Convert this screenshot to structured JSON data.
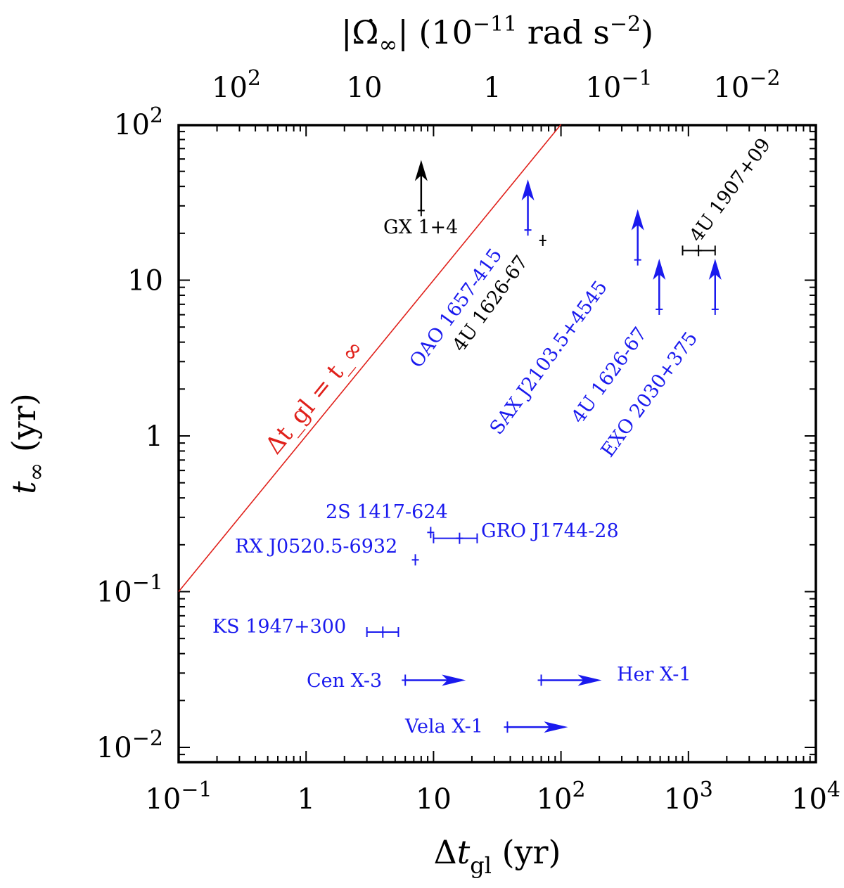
{
  "chart_data": {
    "type": "scatter",
    "xscale": "log",
    "yscale": "log",
    "xlim": [
      0.1,
      10000
    ],
    "ylim": [
      0.008,
      100
    ],
    "xlabel": "Δt_gl (yr)",
    "ylabel": "t_∞ (yr)",
    "top_axis_label": "|Ω̇_∞| (10^−11 rad s^−2)",
    "x_ticks": [
      {
        "base": "10",
        "exp": "−1"
      },
      {
        "base": "1",
        "exp": ""
      },
      {
        "base": "10",
        "exp": ""
      },
      {
        "base": "10",
        "exp": "2"
      },
      {
        "base": "10",
        "exp": "3"
      },
      {
        "base": "10",
        "exp": "4"
      }
    ],
    "y_ticks": [
      {
        "base": "10",
        "exp": "−2"
      },
      {
        "base": "10",
        "exp": "−1"
      },
      {
        "base": "1",
        "exp": ""
      },
      {
        "base": "10",
        "exp": ""
      },
      {
        "base": "10",
        "exp": "2"
      }
    ],
    "top_ticks": [
      {
        "base": "10",
        "exp": "2"
      },
      {
        "base": "10",
        "exp": ""
      },
      {
        "base": "1",
        "exp": ""
      },
      {
        "base": "10",
        "exp": "−1"
      },
      {
        "base": "10",
        "exp": "−2"
      }
    ],
    "reference_line": {
      "label": "Δt_gl = t_∞",
      "color": "#e0201a"
    },
    "colors": {
      "black": "#000000",
      "blue": "#1a1aee",
      "red": "#e0201a"
    },
    "sources": [
      {
        "label": "GX 1+4",
        "color": "black",
        "x": 8,
        "y": 28,
        "arrow": "up"
      },
      {
        "label": "OAO 1657-415",
        "color": "blue",
        "x": 55,
        "y": 21,
        "arrow": "up"
      },
      {
        "label": "4U 1626-67",
        "color": "black",
        "x": 72,
        "y": 18,
        "arrow": "none"
      },
      {
        "label": "SAX J2103.5+4545",
        "color": "blue",
        "x": 400,
        "y": 13.5,
        "arrow": "up"
      },
      {
        "label": "4U 1626-67",
        "color": "blue",
        "x": 590,
        "y": 6.5,
        "arrow": "up"
      },
      {
        "label": "EXO 2030+375",
        "color": "blue",
        "x": 1620,
        "y": 6.5,
        "arrow": "up"
      },
      {
        "label": "4U 1907+09",
        "color": "black",
        "x": 1200,
        "y": 15.5,
        "xerr": [
          900,
          1620
        ],
        "arrow": "none"
      },
      {
        "label": "2S 1417-624",
        "color": "blue",
        "x": 9.5,
        "y": 0.24,
        "arrow": "none"
      },
      {
        "label": "GRO J1744-28",
        "color": "blue",
        "x": 16,
        "y": 0.22,
        "xerr": [
          10,
          22
        ],
        "arrow": "none"
      },
      {
        "label": "RX J0520.5-6932",
        "color": "blue",
        "x": 7.2,
        "y": 0.16,
        "arrow": "none"
      },
      {
        "label": "KS 1947+300",
        "color": "blue",
        "x": 4,
        "y": 0.055,
        "xerr": [
          3,
          5.3
        ],
        "arrow": "none"
      },
      {
        "label": "Cen X-3",
        "color": "blue",
        "x": 6,
        "y": 0.027,
        "arrow": "right"
      },
      {
        "label": "Her X-1",
        "color": "blue",
        "x": 70,
        "y": 0.027,
        "arrow": "right"
      },
      {
        "label": "Vela X-1",
        "color": "blue",
        "x": 38,
        "y": 0.0135,
        "arrow": "right"
      }
    ]
  }
}
